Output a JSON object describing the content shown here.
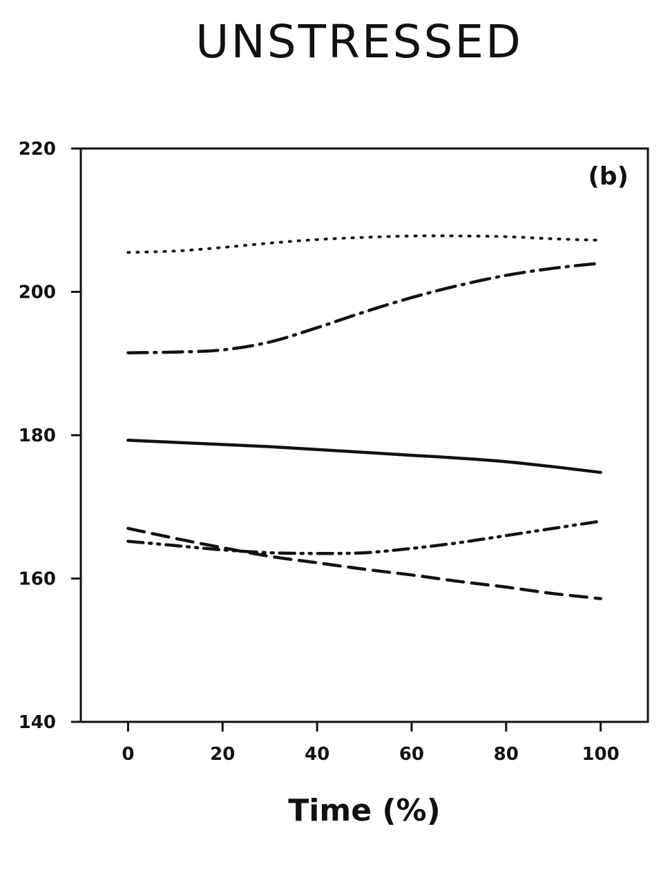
{
  "chart_data": {
    "type": "line",
    "title": "UNSTRESSED",
    "panel_label": "(b)",
    "xlabel": "Time (%)",
    "ylabel": "",
    "xlim": [
      -10,
      110
    ],
    "ylim": [
      140,
      220
    ],
    "xticks": [
      0,
      20,
      40,
      60,
      80,
      100
    ],
    "yticks": [
      140,
      160,
      180,
      200,
      220
    ],
    "grid": false,
    "legend": "none",
    "x": [
      0,
      10,
      20,
      30,
      40,
      50,
      60,
      70,
      80,
      90,
      100
    ],
    "series": [
      {
        "style": "dotted",
        "values": [
          205.5,
          205.7,
          206.2,
          206.8,
          207.3,
          207.6,
          207.8,
          207.8,
          207.7,
          207.4,
          207.2
        ]
      },
      {
        "style": "dash-dot",
        "values": [
          191.5,
          191.6,
          191.9,
          193.0,
          195.0,
          197.2,
          199.2,
          200.9,
          202.3,
          203.3,
          204.0
        ]
      },
      {
        "style": "solid",
        "values": [
          179.3,
          179.0,
          178.7,
          178.4,
          178.0,
          177.6,
          177.2,
          176.8,
          176.3,
          175.6,
          174.8
        ]
      },
      {
        "style": "dash-dot-dot",
        "values": [
          165.2,
          164.6,
          164.0,
          163.6,
          163.5,
          163.6,
          164.2,
          165.0,
          166.0,
          167.0,
          168.0
        ]
      },
      {
        "style": "dashed",
        "values": [
          167.0,
          165.6,
          164.3,
          163.1,
          162.2,
          161.3,
          160.5,
          159.6,
          158.8,
          157.9,
          157.2
        ]
      }
    ]
  }
}
